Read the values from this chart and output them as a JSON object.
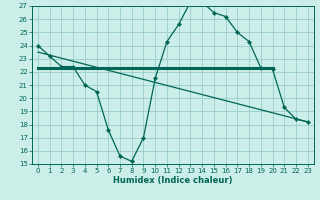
{
  "title": "",
  "xlabel": "Humidex (Indice chaleur)",
  "ylabel": "",
  "background_color": "#cceee8",
  "grid_color": "#99cccc",
  "line_color": "#006655",
  "xlim": [
    -0.5,
    23.5
  ],
  "ylim": [
    15,
    27
  ],
  "xticks": [
    0,
    1,
    2,
    3,
    4,
    5,
    6,
    7,
    8,
    9,
    10,
    11,
    12,
    13,
    14,
    15,
    16,
    17,
    18,
    19,
    20,
    21,
    22,
    23
  ],
  "yticks": [
    15,
    16,
    17,
    18,
    19,
    20,
    21,
    22,
    23,
    24,
    25,
    26,
    27
  ],
  "curve1_x": [
    0,
    1,
    2,
    3,
    4,
    5,
    6,
    7,
    8,
    9,
    10,
    11,
    12,
    13,
    14,
    15,
    16,
    17,
    18,
    19,
    20,
    21,
    22,
    23
  ],
  "curve1_y": [
    24.0,
    23.2,
    22.4,
    22.4,
    21.0,
    20.5,
    17.6,
    15.6,
    15.2,
    17.0,
    21.5,
    24.3,
    25.6,
    27.3,
    27.3,
    26.5,
    26.2,
    25.0,
    24.3,
    22.3,
    22.2,
    19.3,
    18.4,
    18.2
  ],
  "curve2_x": [
    0,
    23
  ],
  "curve2_y": [
    23.5,
    18.2
  ],
  "curve3_x": [
    0,
    20
  ],
  "curve3_y": [
    22.3,
    22.3
  ],
  "tick_fontsize": 5.0,
  "xlabel_fontsize": 6.0
}
